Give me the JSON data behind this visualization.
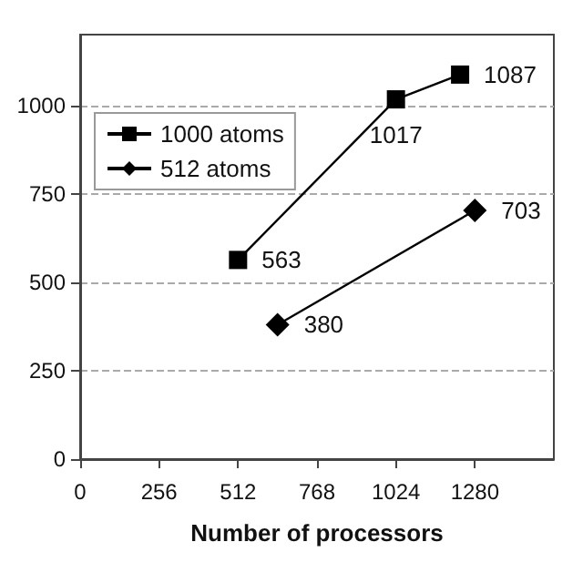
{
  "chart_data": {
    "type": "line",
    "xlabel": "Number of processors",
    "xlim": [
      0,
      1536
    ],
    "xticks": [
      0,
      256,
      512,
      768,
      1024,
      1280
    ],
    "ylim": [
      0,
      1200
    ],
    "yticks": [
      0,
      250,
      500,
      750,
      1000
    ],
    "grid": "y",
    "legend": "top left",
    "data_labels": true,
    "series": [
      {
        "name": "1000 atoms",
        "color": "#000000",
        "marker": "square",
        "x": [
          512,
          1024,
          1232
        ],
        "values": [
          563,
          1017,
          1087
        ]
      },
      {
        "name": "512 atoms",
        "color": "#000000",
        "marker": "diamond",
        "x": [
          640,
          1280
        ],
        "values": [
          380,
          703
        ]
      }
    ]
  }
}
